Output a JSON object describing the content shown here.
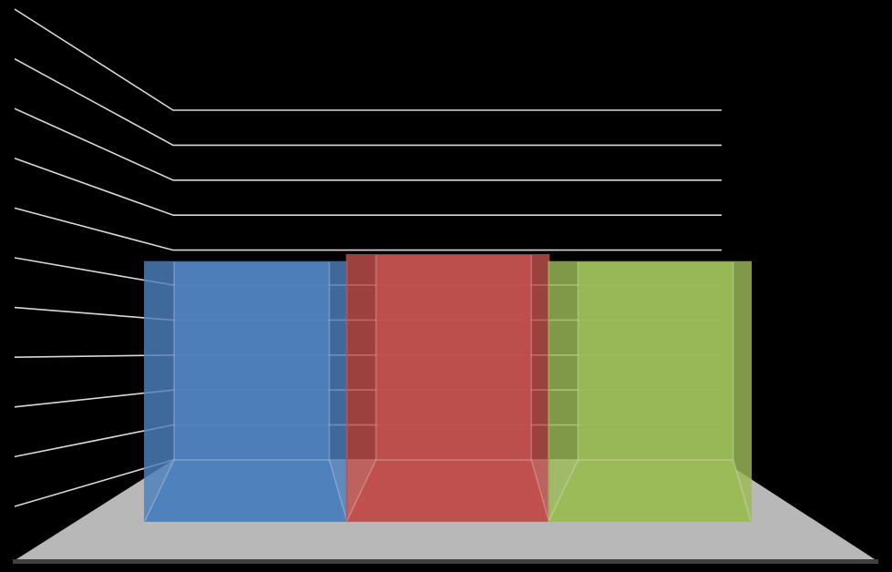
{
  "chart_data": {
    "type": "bar",
    "categories": [
      "",
      "",
      ""
    ],
    "series": [
      {
        "values": [
          7.4,
          7.6,
          7.4
        ]
      }
    ],
    "ylim": [
      0,
      10
    ],
    "grid": true,
    "legend": "none",
    "title": "",
    "xlabel": "",
    "ylabel": "",
    "colors": {
      "background": "#000000",
      "floor": "#b8b8b8",
      "gridline": "#ffffff",
      "bars": [
        "#4f81bd",
        "#c0504d",
        "#9bbb59"
      ]
    }
  }
}
